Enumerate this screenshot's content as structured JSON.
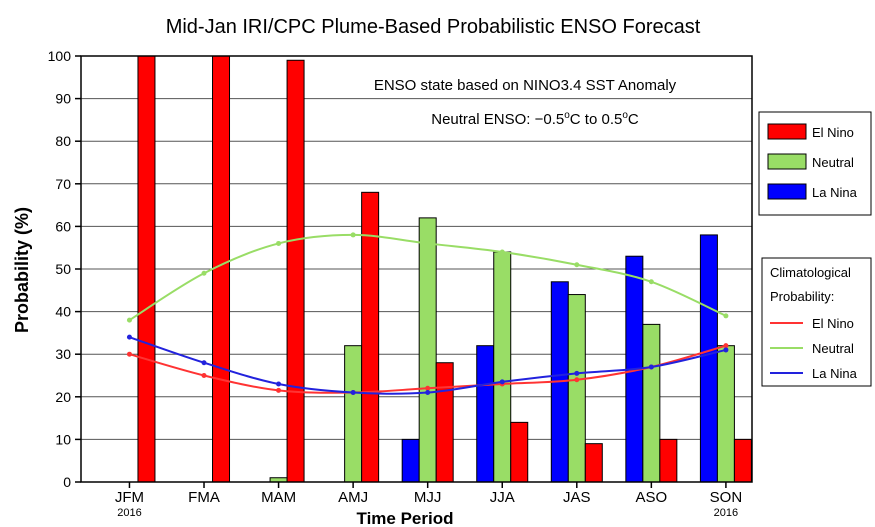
{
  "chart_data": {
    "type": "bar",
    "title": "Mid-Jan IRI/CPC Plume-Based Probabilistic ENSO Forecast",
    "xlabel": "Time Period",
    "ylabel": "Probability (%)",
    "ylim": [
      0,
      100
    ],
    "yticks": [
      0,
      10,
      20,
      30,
      40,
      50,
      60,
      70,
      80,
      90,
      100
    ],
    "grid": true,
    "categories": [
      "JFM",
      "FMA",
      "MAM",
      "AMJ",
      "MJJ",
      "JJA",
      "JAS",
      "ASO",
      "SON"
    ],
    "category_years": [
      "2016",
      "",
      "",
      "",
      "",
      "",
      "",
      "",
      "2016"
    ],
    "series": [
      {
        "name": "La Nina",
        "color": "#0000ff",
        "values": [
          0,
          0,
          0,
          0,
          10,
          32,
          47,
          53,
          58
        ]
      },
      {
        "name": "Neutral",
        "color": "#99dd66",
        "values": [
          0,
          0,
          1,
          32,
          62,
          54,
          44,
          37,
          32
        ]
      },
      {
        "name": "El Nino",
        "color": "#ff0000",
        "values": [
          100,
          100,
          99,
          68,
          28,
          14,
          9,
          10,
          10
        ]
      }
    ],
    "climatology_series": [
      {
        "name": "El Nino",
        "color": "#ff3333",
        "values": [
          30,
          25,
          21.5,
          21,
          22,
          23,
          24,
          27,
          32
        ]
      },
      {
        "name": "Neutral",
        "color": "#99dd66",
        "values": [
          38,
          49,
          56,
          58,
          56,
          54,
          51,
          47,
          39
        ]
      },
      {
        "name": "La Nina",
        "color": "#2222dd",
        "values": [
          34,
          28,
          23,
          21,
          21,
          23.5,
          25.5,
          27,
          31
        ]
      }
    ],
    "annotations": [
      "ENSO state based on NINO3.4 SST Anomaly",
      "Neutral ENSO: −0.5",
      "C to 0.5",
      "C"
    ],
    "annotation_superscript": "o",
    "legend": {
      "placement": "right",
      "items": [
        "El Nino",
        "Neutral",
        "La Nina"
      ],
      "climatology_title": [
        "Climatological",
        "Probability:"
      ],
      "climatology_items": [
        "El Nino",
        "Neutral",
        "La Nina"
      ]
    }
  }
}
